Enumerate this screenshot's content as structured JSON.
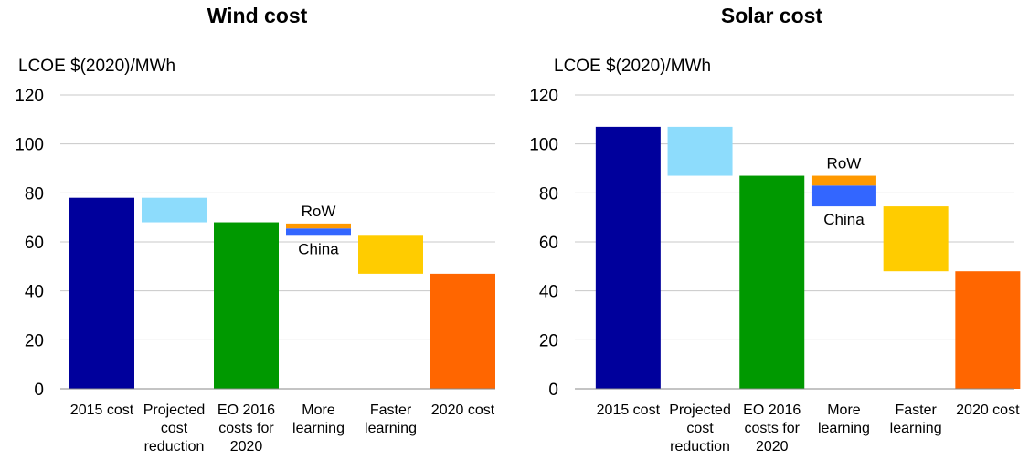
{
  "chart_data": [
    {
      "type": "bar",
      "subtype": "waterfall",
      "title": "Wind cost",
      "ylabel": "LCOE $(2020)/MWh",
      "xlabel": "",
      "ylim": [
        0,
        120
      ],
      "yticks": [
        0,
        20,
        40,
        60,
        80,
        100,
        120
      ],
      "grid": true,
      "categories": [
        [
          "2015 cost"
        ],
        [
          "Projected",
          "cost",
          "reduction"
        ],
        [
          "EO 2016",
          "costs for",
          "2020"
        ],
        [
          "More",
          "learning"
        ],
        [
          "Faster",
          "learning"
        ],
        [
          "2020 cost"
        ]
      ],
      "bars": [
        {
          "category": 0,
          "kind": "total",
          "bottom": 0,
          "top": 78,
          "color": "#00009c"
        },
        {
          "category": 1,
          "kind": "decrease",
          "bottom": 68,
          "top": 78,
          "color": "#8ddcfc"
        },
        {
          "category": 2,
          "kind": "total",
          "bottom": 0,
          "top": 68,
          "color": "#009900"
        },
        {
          "category": 3,
          "kind": "decrease",
          "name": "China",
          "bottom": 62.5,
          "top": 65.5,
          "color": "#3366ff"
        },
        {
          "category": 3,
          "kind": "decrease",
          "name": "RoW",
          "bottom": 65.5,
          "top": 67.5,
          "color": "#ff9900"
        },
        {
          "category": 4,
          "kind": "decrease",
          "bottom": 47,
          "top": 62.5,
          "color": "#ffcc00"
        },
        {
          "category": 5,
          "kind": "total",
          "bottom": 0,
          "top": 47,
          "color": "#ff6600"
        }
      ],
      "annotations": [
        {
          "text": "RoW",
          "category": 3,
          "position": "above"
        },
        {
          "text": "China",
          "category": 3,
          "position": "below"
        }
      ]
    },
    {
      "type": "bar",
      "subtype": "waterfall",
      "title": "Solar cost",
      "ylabel": "LCOE $(2020)/MWh",
      "xlabel": "",
      "ylim": [
        0,
        120
      ],
      "yticks": [
        0,
        20,
        40,
        60,
        80,
        100,
        120
      ],
      "grid": true,
      "categories": [
        [
          "2015 cost"
        ],
        [
          "Projected",
          "cost",
          "reduction"
        ],
        [
          "EO 2016",
          "costs for",
          "2020"
        ],
        [
          "More",
          "learning"
        ],
        [
          "Faster",
          "learning"
        ],
        [
          "2020 cost"
        ]
      ],
      "bars": [
        {
          "category": 0,
          "kind": "total",
          "bottom": 0,
          "top": 107,
          "color": "#00009c"
        },
        {
          "category": 1,
          "kind": "decrease",
          "bottom": 87,
          "top": 107,
          "color": "#8ddcfc"
        },
        {
          "category": 2,
          "kind": "total",
          "bottom": 0,
          "top": 87,
          "color": "#009900"
        },
        {
          "category": 3,
          "kind": "decrease",
          "name": "China",
          "bottom": 74.5,
          "top": 83,
          "color": "#3366ff"
        },
        {
          "category": 3,
          "kind": "decrease",
          "name": "RoW",
          "bottom": 83,
          "top": 87,
          "color": "#ff9900"
        },
        {
          "category": 4,
          "kind": "decrease",
          "bottom": 48,
          "top": 74.5,
          "color": "#ffcc00"
        },
        {
          "category": 5,
          "kind": "total",
          "bottom": 0,
          "top": 48,
          "color": "#ff6600"
        }
      ],
      "annotations": [
        {
          "text": "RoW",
          "category": 3,
          "position": "above"
        },
        {
          "text": "China",
          "category": 3,
          "position": "below"
        }
      ]
    }
  ]
}
